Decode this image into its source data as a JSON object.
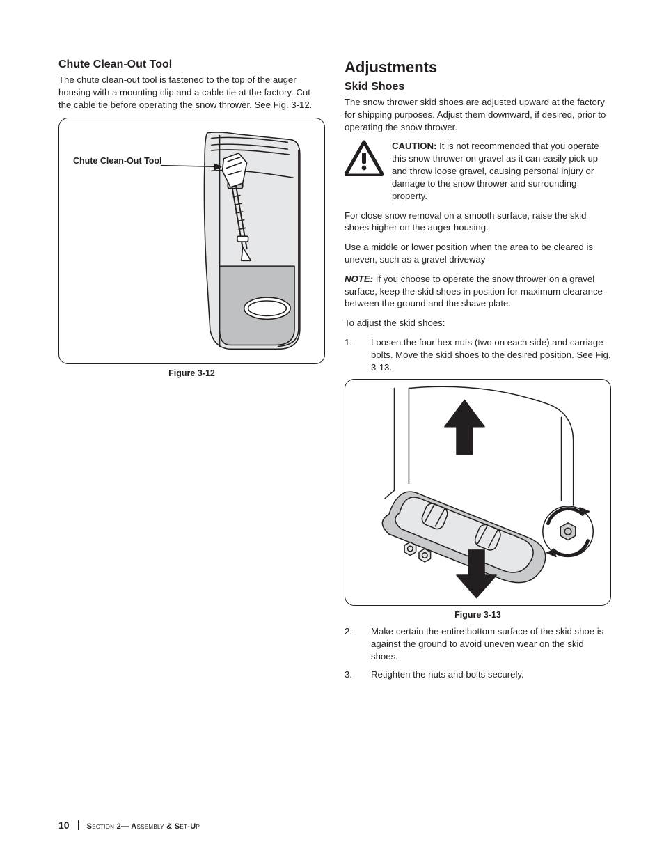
{
  "left": {
    "h3": "Chute Clean-Out Tool",
    "p1": "The chute clean-out tool is fastened to the top of the auger housing with a mounting clip and a cable tie at the factory. Cut the cable tie before operating the snow thrower. See Fig. 3-12.",
    "fig312": {
      "label": "Chute Clean-Out Tool",
      "caption": "Figure 3-12",
      "stroke": "#231f20",
      "fill_light": "#e6e7e8",
      "fill_mid": "#bfc0c2",
      "fill_white": "#ffffff"
    }
  },
  "right": {
    "h2": "Adjustments",
    "h3": "Skid Shoes",
    "p1": "The snow thrower skid shoes are adjusted upward at the factory for shipping purposes. Adjust them downward, if desired, prior to operating the snow thrower.",
    "caution": {
      "lead": "CAUTION:",
      "text": " It is not recommended that you operate this snow thrower on gravel as it can easily pick up and throw loose gravel, causing personal injury or damage to the snow thrower and surrounding property.",
      "triangle_stroke": "#231f20",
      "triangle_fill": "#ffffff",
      "bang_fill": "#231f20"
    },
    "p2": "For close snow removal on a smooth surface, raise the skid shoes higher on the auger housing.",
    "p3": "Use a middle or lower position when the area to be cleared is uneven, such as a gravel driveway",
    "note_lead": "NOTE:",
    "note_text": " If you choose to operate the snow thrower on a gravel surface, keep the skid shoes in position for maximum clearance between the ground and the shave plate.",
    "p4": "To adjust the skid shoes:",
    "step1": "Loosen the four hex nuts (two on each side) and carriage bolts. Move the skid shoes to the desired position. See Fig. 3-13.",
    "fig313": {
      "caption": "Figure 3-13",
      "stroke": "#231f20",
      "fill_light": "#e6e7e8",
      "fill_mid": "#c9cacb",
      "fill_dark": "#a7a8aa",
      "arrow_fill": "#231f20",
      "fill_white": "#ffffff"
    },
    "step2": "Make certain the entire bottom surface of the skid shoe is against the ground to avoid uneven wear on the skid shoes.",
    "step3": "Retighten the nuts and bolts securely."
  },
  "footer": {
    "page": "10",
    "section_caps": "S",
    "section_rest": "ection",
    "num": " 2— A",
    "rest1": "ssembly",
    "amp": " & S",
    "rest2": "et",
    "dash": "-U",
    "rest3": "p"
  }
}
